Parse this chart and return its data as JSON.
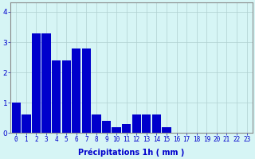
{
  "categories": [
    0,
    1,
    2,
    3,
    4,
    5,
    6,
    7,
    8,
    9,
    10,
    11,
    12,
    13,
    14,
    15,
    16,
    17,
    18,
    19,
    20,
    21,
    22,
    23
  ],
  "values": [
    1.0,
    0.6,
    3.3,
    3.3,
    2.4,
    2.4,
    2.8,
    2.8,
    0.6,
    0.4,
    0.2,
    0.3,
    0.6,
    0.6,
    0.6,
    0.2,
    0.0,
    0.0,
    0.0,
    0.0,
    0.0,
    0.0,
    0.0,
    0.0
  ],
  "bar_color": "#0000cc",
  "bg_color": "#d6f5f5",
  "grid_color": "#b0d0d0",
  "text_color": "#0000cc",
  "xlabel": "Précipitations 1h ( mm )",
  "ylim": [
    0,
    4.3
  ],
  "yticks": [
    0,
    1,
    2,
    3,
    4
  ],
  "label_fontsize": 7.0,
  "tick_fontsize": 5.5
}
